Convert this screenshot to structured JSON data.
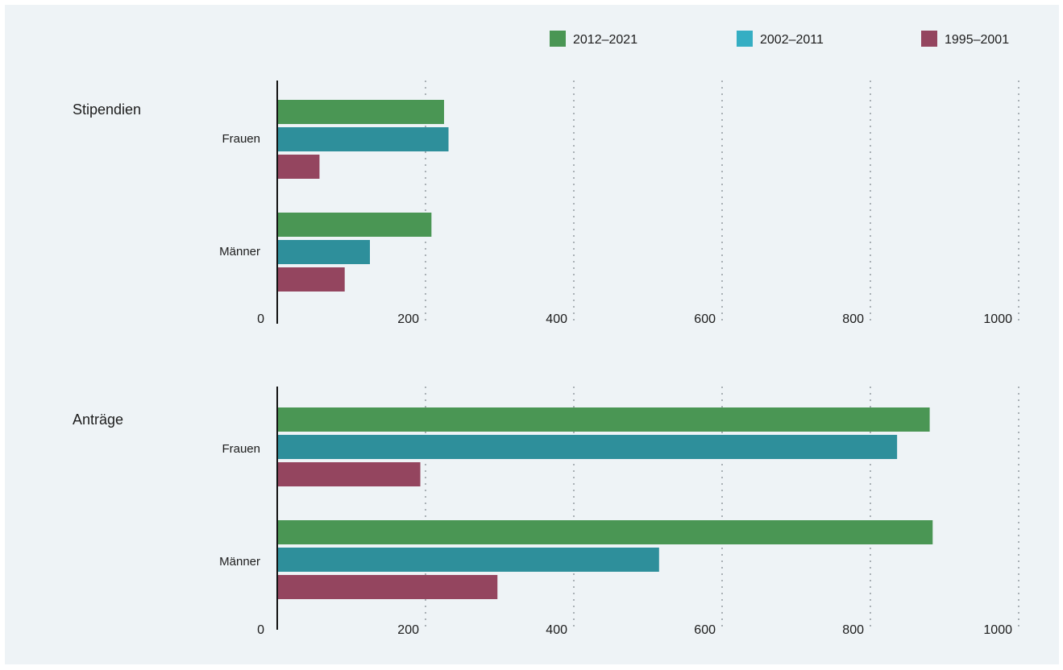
{
  "legend": [
    {
      "label": "2012–2021",
      "color": "#4a9654"
    },
    {
      "label": "2002–2011",
      "color": "#35aec3"
    },
    {
      "label": "1995–2001",
      "color": "#94455f"
    }
  ],
  "chart_data": [
    {
      "type": "bar",
      "orientation": "horizontal",
      "group_title": "Stipendien",
      "categories": [
        "Frauen",
        "Männer"
      ],
      "series": [
        {
          "name": "2012–2021",
          "color": "#4a9654",
          "values": [
            225,
            208
          ]
        },
        {
          "name": "2002–2011",
          "color": "#2e8f9b",
          "values": [
            231,
            125
          ]
        },
        {
          "name": "1995–2001",
          "color": "#94455f",
          "values": [
            57,
            91
          ]
        }
      ],
      "xlim": [
        0,
        1000
      ],
      "ticks": [
        0,
        200,
        400,
        600,
        800,
        1000
      ],
      "grid": true
    },
    {
      "type": "bar",
      "orientation": "horizontal",
      "group_title": "Anträge",
      "categories": [
        "Frauen",
        "Männer"
      ],
      "series": [
        {
          "name": "2012–2021",
          "color": "#4a9654",
          "values": [
            880,
            884
          ]
        },
        {
          "name": "2002–2011",
          "color": "#2e8f9b",
          "values": [
            836,
            515
          ]
        },
        {
          "name": "1995–2001",
          "color": "#94455f",
          "values": [
            193,
            297
          ]
        }
      ],
      "xlim": [
        0,
        1000
      ],
      "ticks": [
        0,
        200,
        400,
        600,
        800,
        1000
      ],
      "grid": true
    }
  ]
}
